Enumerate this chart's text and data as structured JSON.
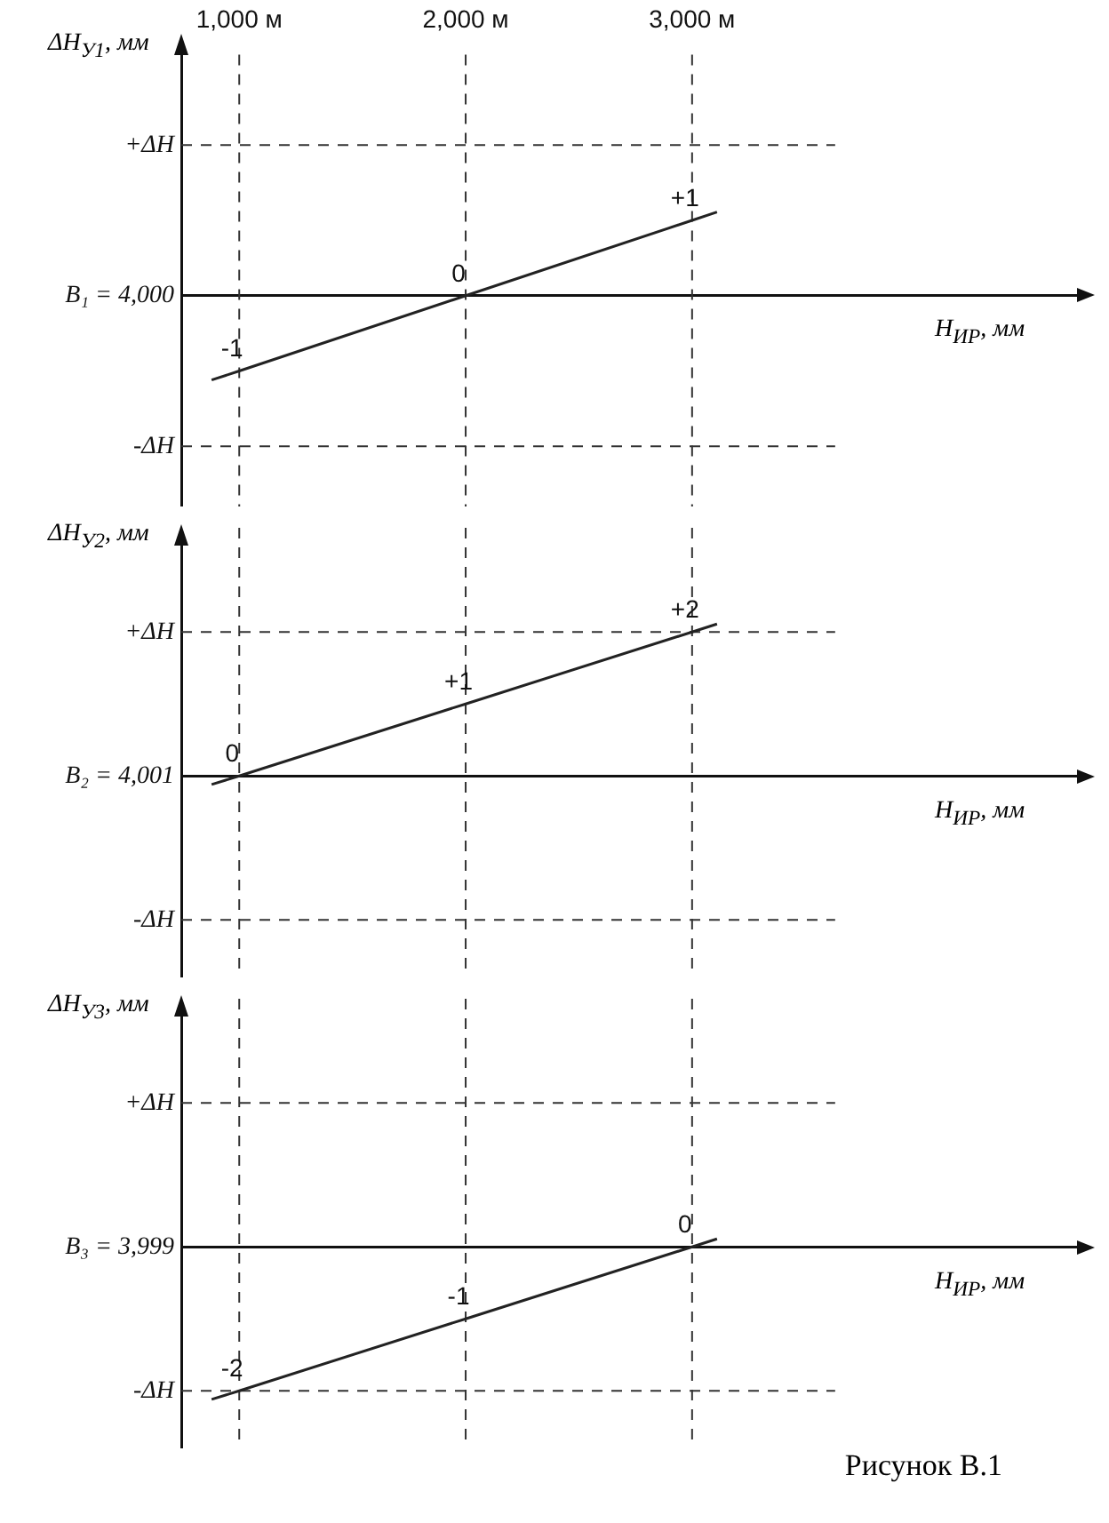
{
  "chart_data": [
    {
      "type": "line",
      "x": [
        878,
        1000,
        2000,
        3000,
        3110
      ],
      "xlim": [
        744,
        4700
      ],
      "xticks": [
        {
          "value": 1000,
          "label": "1,000 м"
        },
        {
          "value": 2000,
          "label": "2,000 м"
        },
        {
          "value": 3000,
          "label": "3,000 м"
        }
      ],
      "tick_labels": "x",
      "ylim": [
        -2.8,
        3.2
      ],
      "xlabel": "H$_{ИР}$, мм",
      "ylabel": "ΔH$_{У1}$, мм",
      "grid": "x",
      "legend": false,
      "marker": "none",
      "line_style": "solid",
      "series": [
        {
          "color": "#222222",
          "values": [
            -1.12,
            -1,
            0,
            1,
            1.11
          ],
          "value_labels": [
            null,
            "-1",
            "0",
            "+1",
            null
          ]
        }
      ],
      "ref_lines": [
        {
          "axis": "y",
          "value": 2,
          "label": "+ΔH",
          "line_style": "dashed"
        },
        {
          "axis": "y",
          "value": -2,
          "label": "-ΔH",
          "line_style": "dashed"
        }
      ],
      "annotations": [
        "B₁ = 4,000"
      ]
    },
    {
      "type": "line",
      "x": [
        878,
        1000,
        2000,
        3000,
        3110
      ],
      "xlim": [
        744,
        4700
      ],
      "xticks": [
        1000,
        2000,
        3000
      ],
      "tick_labels": false,
      "ylim": [
        -2.8,
        3.2
      ],
      "xlabel": "H$_{ИР}$, мм",
      "ylabel": "ΔH$_{У2}$, мм",
      "grid": "x",
      "legend": false,
      "marker": "none",
      "line_style": "solid",
      "series": [
        {
          "color": "#222222",
          "values": [
            -0.12,
            0,
            1,
            2,
            2.11
          ],
          "value_labels": [
            null,
            "0",
            "+1",
            "+2",
            null
          ]
        }
      ],
      "ref_lines": [
        {
          "axis": "y",
          "value": 2,
          "label": "+ΔH",
          "line_style": "dashed"
        },
        {
          "axis": "y",
          "value": -2,
          "label": "-ΔH",
          "line_style": "dashed"
        }
      ],
      "annotations": [
        "B₂ = 4,001"
      ]
    },
    {
      "type": "line",
      "x": [
        878,
        1000,
        2000,
        3000,
        3110
      ],
      "xlim": [
        744,
        4700
      ],
      "xticks": [
        1000,
        2000,
        3000
      ],
      "tick_labels": false,
      "ylim": [
        -2.8,
        3.2
      ],
      "xlabel": "H$_{ИР}$, мм",
      "ylabel": "ΔH$_{У3}$, мм",
      "grid": "x",
      "legend": false,
      "marker": "none",
      "line_style": "solid",
      "series": [
        {
          "color": "#222222",
          "values": [
            -2.12,
            -2,
            -1,
            0,
            0.11
          ],
          "value_labels": [
            null,
            "-2",
            "-1",
            "0",
            null
          ]
        }
      ],
      "ref_lines": [
        {
          "axis": "y",
          "value": 2,
          "label": "+ΔH",
          "line_style": "dashed"
        },
        {
          "axis": "y",
          "value": -2,
          "label": "-ΔH",
          "line_style": "dashed"
        }
      ],
      "annotations": [
        "B₃ = 3,999",
        "Рисунок В.1"
      ]
    }
  ]
}
